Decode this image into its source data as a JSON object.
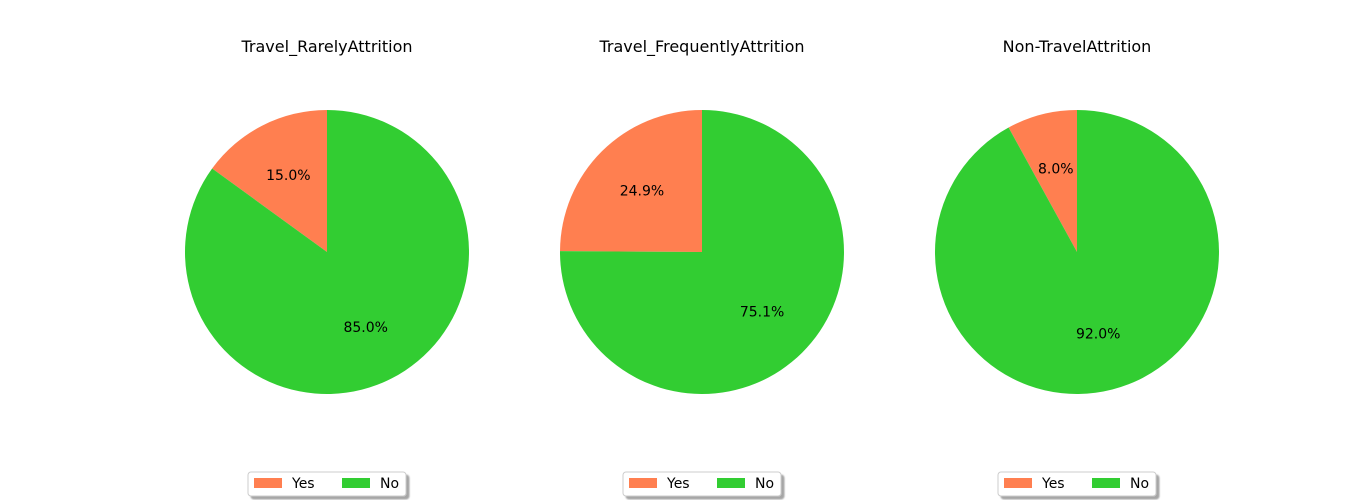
{
  "chart_data": [
    {
      "type": "pie",
      "title": "Travel_RarelyAttrition",
      "labels": [
        "Yes",
        "No"
      ],
      "values": [
        15.0,
        85.0
      ],
      "autopct": [
        "15.0%",
        "85.0%"
      ],
      "colors": [
        "#ff7f50",
        "#32cd32"
      ],
      "start_angle_deg": 90,
      "direction": "counterclockwise",
      "legend": {
        "position": "bottom",
        "entries": [
          "Yes",
          "No"
        ]
      }
    },
    {
      "type": "pie",
      "title": "Travel_FrequentlyAttrition",
      "labels": [
        "Yes",
        "No"
      ],
      "values": [
        24.9,
        75.1
      ],
      "autopct": [
        "24.9%",
        "75.1%"
      ],
      "colors": [
        "#ff7f50",
        "#32cd32"
      ],
      "start_angle_deg": 90,
      "direction": "counterclockwise",
      "legend": {
        "position": "bottom",
        "entries": [
          "Yes",
          "No"
        ]
      }
    },
    {
      "type": "pie",
      "title": "Non-TravelAttrition",
      "labels": [
        "Yes",
        "No"
      ],
      "values": [
        8.0,
        92.0
      ],
      "autopct": [
        "8.0%",
        "92.0%"
      ],
      "colors": [
        "#ff7f50",
        "#32cd32"
      ],
      "start_angle_deg": 90,
      "direction": "counterclockwise",
      "legend": {
        "position": "bottom",
        "entries": [
          "Yes",
          "No"
        ]
      }
    }
  ]
}
